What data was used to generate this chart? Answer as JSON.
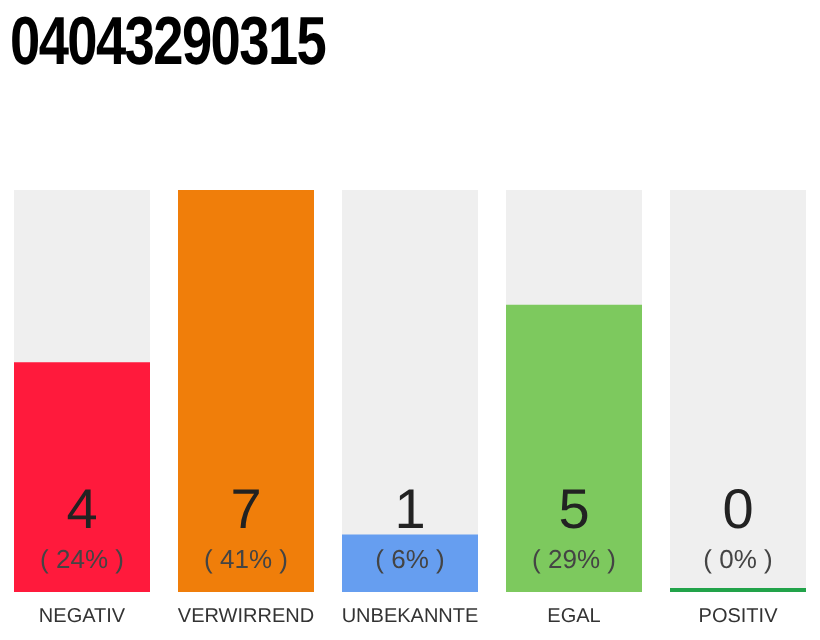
{
  "chart_data": {
    "type": "bar",
    "title": "04043290315",
    "categories": [
      "NEGATIV",
      "VERWIRREND",
      "UNBEKANNTE",
      "EGAL",
      "POSITIV"
    ],
    "values": [
      4,
      7,
      1,
      5,
      0
    ],
    "colors": [
      "#ff1a3c",
      "#f07e0a",
      "#669ef0",
      "#7dc95e",
      "#22a34a"
    ],
    "ylim": [
      0,
      7
    ],
    "tick_labels": "x",
    "grid": false,
    "legend": false,
    "data_labels": true,
    "annotations": [
      "( 24% )",
      "( 41% )",
      "( 6% )",
      "( 29% )",
      "( 0% )"
    ]
  }
}
